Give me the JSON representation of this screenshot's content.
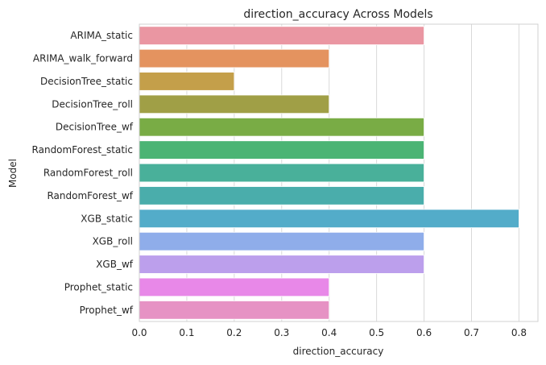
{
  "chart_data": {
    "type": "bar",
    "orientation": "horizontal",
    "title": "direction_accuracy Across Models",
    "xlabel": "direction_accuracy",
    "ylabel": "Model",
    "xlim": [
      0,
      0.84
    ],
    "xticks": [
      "0.0",
      "0.1",
      "0.2",
      "0.3",
      "0.4",
      "0.5",
      "0.6",
      "0.7",
      "0.8"
    ],
    "grid": true,
    "categories": [
      "ARIMA_static",
      "ARIMA_walk_forward",
      "DecisionTree_static",
      "DecisionTree_roll",
      "DecisionTree_wf",
      "RandomForest_static",
      "RandomForest_roll",
      "RandomForest_wf",
      "XGB_static",
      "XGB_roll",
      "XGB_wf",
      "Prophet_static",
      "Prophet_wf"
    ],
    "values": [
      0.6,
      0.4,
      0.2,
      0.4,
      0.6,
      0.6,
      0.6,
      0.6,
      0.8,
      0.6,
      0.6,
      0.4,
      0.4
    ],
    "colors": [
      "#ea96a2",
      "#e4935f",
      "#c49f4a",
      "#a09f46",
      "#79ac45",
      "#4bb474",
      "#49b09a",
      "#4aadab",
      "#53acc9",
      "#8fadea",
      "#bc9fec",
      "#e888e8",
      "#e692c4"
    ]
  }
}
